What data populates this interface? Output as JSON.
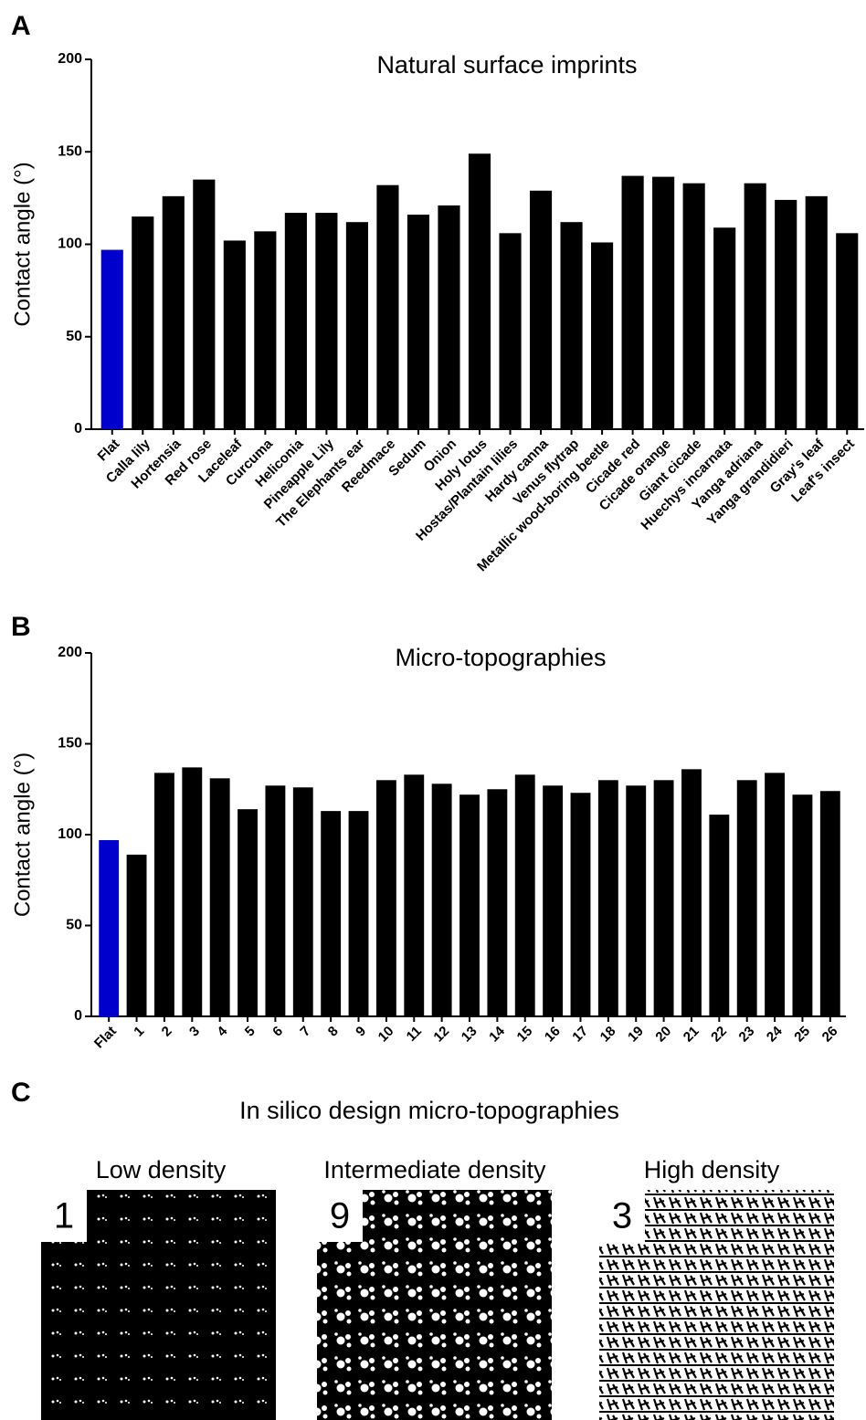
{
  "chart_data": [
    {
      "type": "bar",
      "panel": "A",
      "title": "Natural surface imprints",
      "y_label": "Contact angle (°)",
      "categories": [
        "Flat",
        "Calla lily",
        "Hortensia",
        "Red rose",
        "Laceleaf",
        "Curcuma",
        "Heliconia",
        "Pineapple Lily",
        "The Elephants ear",
        "Reedmace",
        "Sedum",
        "Onion",
        "Holy lotus",
        "Hostas/Plantain lilies",
        "Hardy canna",
        "Venus flytrap",
        "Metallic wood-boring beetle",
        "Cicade red",
        "Cicade orange",
        "Giant cicade",
        "Huechys incarnata",
        "Yanga adriana",
        "Yanga grandidieri",
        "Gray's leaf",
        "Leaf's insect"
      ],
      "values": [
        97,
        115,
        126,
        135,
        102,
        107,
        117,
        117,
        112,
        132,
        116,
        121,
        149,
        106,
        129,
        112,
        101,
        137,
        136.5,
        133,
        109,
        133,
        124,
        126,
        106
      ],
      "colors": [
        "#0000cc",
        "#000000",
        "#000000",
        "#000000",
        "#000000",
        "#000000",
        "#000000",
        "#000000",
        "#000000",
        "#000000",
        "#000000",
        "#000000",
        "#000000",
        "#000000",
        "#000000",
        "#000000",
        "#000000",
        "#000000",
        "#000000",
        "#000000",
        "#000000",
        "#000000",
        "#000000",
        "#000000",
        "#000000"
      ],
      "ylim": [
        0,
        200
      ],
      "yticks": [
        0,
        50,
        100,
        150,
        200
      ]
    },
    {
      "type": "bar",
      "panel": "B",
      "title": "Micro-topographies",
      "y_label": "Contact angle (°)",
      "categories": [
        "Flat",
        "1",
        "2",
        "3",
        "4",
        "5",
        "6",
        "7",
        "8",
        "9",
        "10",
        "11",
        "12",
        "13",
        "14",
        "15",
        "16",
        "17",
        "18",
        "19",
        "20",
        "21",
        "22",
        "23",
        "24",
        "25",
        "26"
      ],
      "values": [
        97,
        89,
        134,
        137,
        131,
        114,
        127,
        126,
        113,
        113,
        130,
        133,
        128,
        122,
        125,
        133,
        127,
        123,
        130,
        127,
        130,
        136,
        111,
        130,
        134,
        122,
        124
      ],
      "colors": [
        "#0000cc",
        "#000000",
        "#000000",
        "#000000",
        "#000000",
        "#000000",
        "#000000",
        "#000000",
        "#000000",
        "#000000",
        "#000000",
        "#000000",
        "#000000",
        "#000000",
        "#000000",
        "#000000",
        "#000000",
        "#000000",
        "#000000",
        "#000000",
        "#000000",
        "#000000",
        "#000000",
        "#000000",
        "#000000",
        "#000000",
        "#000000"
      ],
      "ylim": [
        0,
        200
      ],
      "yticks": [
        0,
        50,
        100,
        150,
        200
      ]
    }
  ],
  "panel_c": {
    "panel": "C",
    "title": "In silico design micro-topographies",
    "images": [
      {
        "label": "Low density",
        "number": "1"
      },
      {
        "label": "Intermediate density",
        "number": "9"
      },
      {
        "label": "High density",
        "number": "3"
      }
    ]
  }
}
